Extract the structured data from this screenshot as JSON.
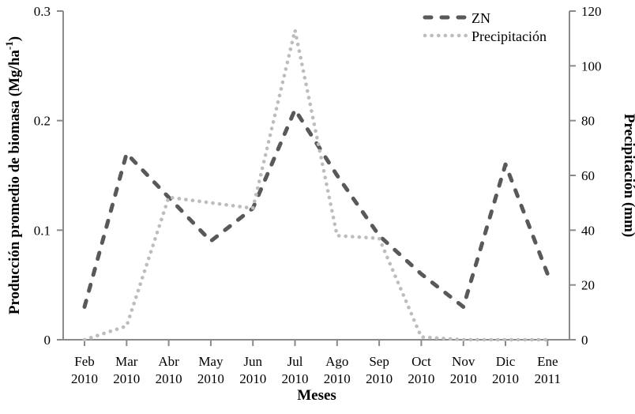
{
  "labels": {
    "left_axis_title_main": "Producción promedio de biomasa  (Mg/ha",
    "left_axis_title_sup": "-1",
    "left_axis_title_close": ")"
  },
  "colors": {
    "zn_series": "#595959",
    "precipitation_series": "#bdbdbd",
    "axis": "#8a8a8a",
    "text": "#000000",
    "background": "#ffffff"
  },
  "chart_data": {
    "type": "line",
    "title": "",
    "xlabel": "Meses",
    "ylabel_left": "Producción promedio de biomasa (Mg/ha-1)",
    "ylabel_right": "Precipitación (mm)",
    "ylim_left": [
      0,
      0.3
    ],
    "ylim_right": [
      0,
      120
    ],
    "yticks_left": [
      "0",
      "0.1",
      "0.2",
      "0.3"
    ],
    "yticks_right": [
      "0",
      "20",
      "40",
      "60",
      "80",
      "100",
      "120"
    ],
    "grid": false,
    "legend_position": "top-right",
    "categories": [
      "Feb 2010",
      "Mar 2010",
      "Abr 2010",
      "May 2010",
      "Jun 2010",
      "Jul 2010",
      "Ago 2010",
      "Sep 2010",
      "Oct 2010",
      "Nov 2010",
      "Dic 2010",
      "Ene 2011"
    ],
    "series": [
      {
        "name": "ZN",
        "axis": "left",
        "line_style": "dashed",
        "color": "#595959",
        "values": [
          0.03,
          0.17,
          0.13,
          0.09,
          0.12,
          0.21,
          0.15,
          0.095,
          0.06,
          0.03,
          0.16,
          0.06
        ]
      },
      {
        "name": "Precipitación",
        "axis": "right",
        "line_style": "dotted",
        "color": "#bdbdbd",
        "values": [
          0,
          5,
          52,
          50,
          48,
          113,
          38,
          37,
          1,
          0,
          0,
          0
        ]
      }
    ]
  }
}
